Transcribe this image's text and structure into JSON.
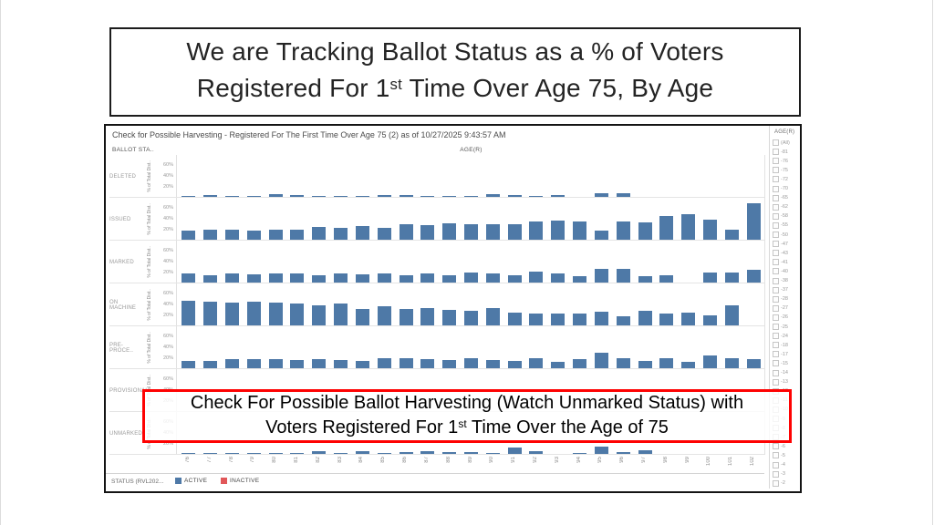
{
  "colors": {
    "bar_blue": "#4e79a7",
    "inactive_red": "#e15759",
    "callout_border": "#ff0000",
    "frame_black": "#1c1c1c"
  },
  "slide": {
    "title_line1": "We are Tracking Ballot Status as a % of Voters",
    "title_line2": {
      "pre": "Registered For 1",
      "sup": "st",
      "post": " Time Over Age 75, By Age"
    }
  },
  "callout": {
    "line1": "Check For Possible Ballot Harvesting (Watch Unmarked Status) with",
    "line2": {
      "pre": "Voters Registered For 1",
      "sup": "st",
      "post": " Time Over the Age of 75"
    }
  },
  "dashboard": {
    "header": "Check for Possible Harvesting - Registered For The First Time Over Age 75 (2) as of 10/27/2025 9:43:57 AM",
    "row_dimension_header": "BALLOT STA..",
    "x_dimension_header": "AGE(R)",
    "filter": {
      "title": "AGE(R)",
      "items": [
        "(All)",
        "-81",
        "-76",
        "-75",
        "-72",
        "-70",
        "-65",
        "-62",
        "-58",
        "-55",
        "-50",
        "-47",
        "-43",
        "-41",
        "-40",
        "-38",
        "-37",
        "-28",
        "-27",
        "-26",
        "-25",
        "-24",
        "-18",
        "-17",
        "-15",
        "-14",
        "-13",
        "-12",
        "-11",
        "-10",
        "-9",
        "-8",
        "-7",
        "-6",
        "-5",
        "-4",
        "-3",
        "-2"
      ]
    },
    "legend": {
      "label": "STATUS (RVL202...",
      "entries": [
        {
          "label": "ACTIVE",
          "color": "#4e79a7"
        },
        {
          "label": "INACTIVE",
          "color": "#e15759"
        }
      ]
    }
  },
  "chart_data": {
    "type": "bar",
    "layout": "small_multiples_rows",
    "title": "Check for Possible Harvesting - Registered For The First Time Over Age 75 (2) as of 10/27/2025 9:43:57 AM",
    "xlabel": "AGE(R)",
    "ylabel": "% of Total Dist..",
    "ylim": [
      0,
      80
    ],
    "y_ticks": [
      "60%",
      "40%",
      "20%"
    ],
    "grid": false,
    "legend_position": "bottom",
    "categories": [
      "76",
      "77",
      "78",
      "79",
      "80",
      "81",
      "82",
      "83",
      "84",
      "85",
      "86",
      "87",
      "88",
      "89",
      "90",
      "91",
      "92",
      "93",
      "94",
      "95",
      "96",
      "97",
      "98",
      "99",
      "100",
      "101",
      "102"
    ],
    "series": [
      {
        "name": "DELETED",
        "values": [
          4,
          5,
          4,
          4,
          6,
          5,
          4,
          4,
          4,
          5,
          5,
          3,
          4,
          4,
          6,
          5,
          4,
          5,
          0,
          8,
          8,
          0,
          0,
          0,
          0,
          0,
          0
        ]
      },
      {
        "name": "ISSUED",
        "values": [
          18,
          20,
          20,
          19,
          21,
          21,
          25,
          24,
          28,
          24,
          31,
          29,
          32,
          30,
          30,
          31,
          36,
          37,
          35,
          19,
          35,
          34,
          46,
          50,
          40,
          21,
          70
        ]
      },
      {
        "name": "MARKED",
        "values": [
          18,
          16,
          19,
          17,
          18,
          19,
          16,
          19,
          17,
          19,
          16,
          18,
          15,
          21,
          18,
          15,
          22,
          18,
          13,
          28,
          27,
          13,
          16,
          0,
          20,
          20,
          26
        ]
      },
      {
        "name": "ON MACHINE",
        "values": [
          48,
          46,
          44,
          46,
          44,
          42,
          40,
          42,
          32,
          37,
          32,
          34,
          31,
          29,
          34,
          25,
          24,
          24,
          23,
          28,
          18,
          29,
          23,
          26,
          20,
          40,
          0
        ]
      },
      {
        "name": "PRE-PROCE..",
        "values": [
          15,
          16,
          19,
          18,
          18,
          17,
          19,
          17,
          15,
          21,
          21,
          19,
          17,
          20,
          17,
          16,
          21,
          14,
          19,
          31,
          20,
          16,
          21,
          14,
          26,
          20,
          19
        ]
      },
      {
        "name": "PROVISIONAL",
        "values": [
          0,
          0,
          0,
          0,
          0,
          0,
          0,
          0,
          0,
          0,
          0,
          0,
          0,
          0,
          0,
          0,
          0,
          0,
          0,
          0,
          0,
          0,
          0,
          0,
          0,
          0,
          0
        ]
      },
      {
        "name": "UNMARKED",
        "values": [
          3,
          4,
          3,
          4,
          4,
          4,
          6,
          4,
          7,
          3,
          5,
          7,
          5,
          5,
          4,
          13,
          6,
          2,
          4,
          15,
          5,
          8,
          0,
          0,
          0,
          0,
          0
        ]
      }
    ],
    "inactive_segments": [
      {
        "series": "DELETED",
        "age": "86",
        "value": 1
      },
      {
        "series": "DELETED",
        "age": "89",
        "value": 1
      },
      {
        "series": "ISSUED",
        "age": "92",
        "value": 1.5
      },
      {
        "series": "PRE-PROCE..",
        "age": "89",
        "value": 1
      }
    ]
  }
}
